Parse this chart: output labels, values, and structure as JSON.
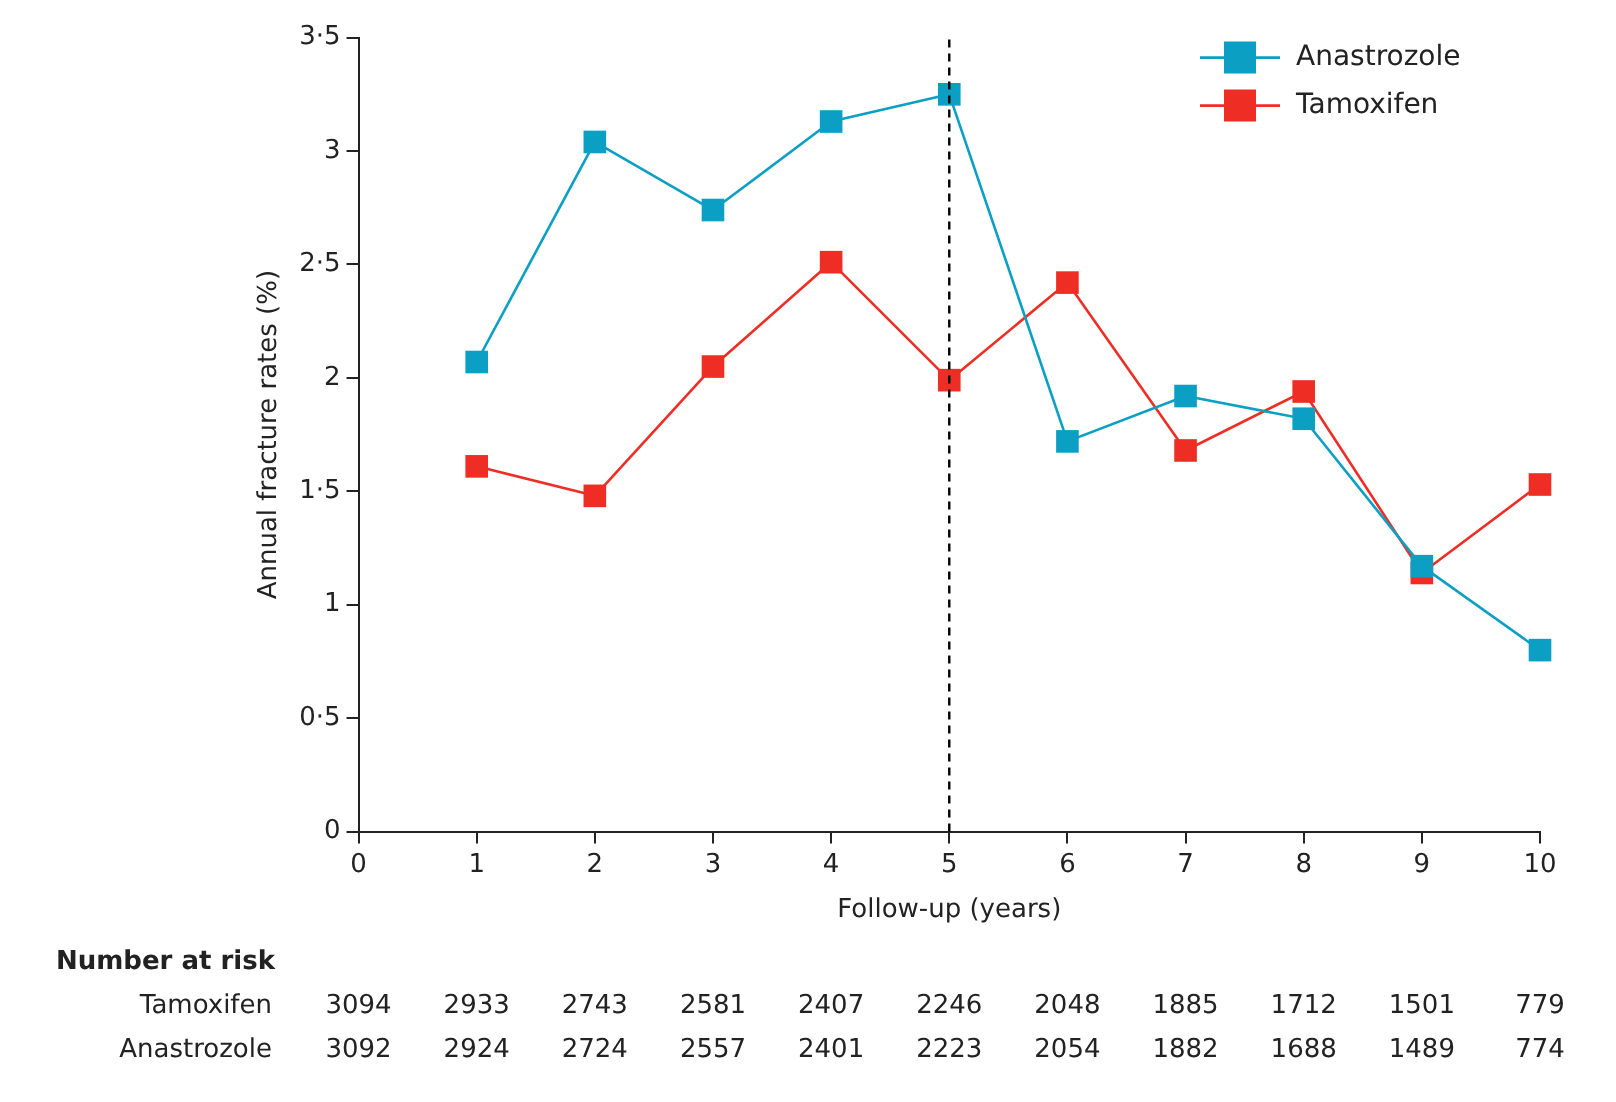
{
  "chart_data": {
    "type": "line",
    "xlabel": "Follow-up (years)",
    "ylabel": "Annual fracture rates (%)",
    "x": [
      1,
      2,
      3,
      4,
      5,
      6,
      7,
      8,
      9,
      10
    ],
    "series": [
      {
        "name": "Anastrozole",
        "color": "#0b9fc4",
        "values": [
          2.07,
          3.04,
          2.74,
          3.13,
          3.25,
          1.72,
          1.92,
          1.82,
          1.17,
          0.8
        ]
      },
      {
        "name": "Tamoxifen",
        "color": "#ee2e24",
        "values": [
          1.61,
          1.48,
          2.05,
          2.51,
          1.99,
          2.42,
          1.68,
          1.94,
          1.14,
          1.53
        ]
      }
    ],
    "xlim": [
      0,
      10
    ],
    "xticks": [
      0,
      1,
      2,
      3,
      4,
      5,
      6,
      7,
      8,
      9,
      10
    ],
    "ylim": [
      0,
      3.5
    ],
    "yticks": [
      0,
      {
        "value": 0.5,
        "label": "0·5"
      },
      1,
      {
        "value": 1.5,
        "label": "1·5"
      },
      2,
      {
        "value": 2.5,
        "label": "2·5"
      },
      3,
      {
        "value": 3.5,
        "label": "3·5"
      }
    ],
    "ref_lines": [
      {
        "axis": "x",
        "value": 5,
        "color": "#000000",
        "line_style": "dashed"
      }
    ],
    "grid": false,
    "legend": "top right",
    "marker": "square",
    "line_style": "solid",
    "annotations": [
      "Number at risk",
      "Tamoxifen",
      "3094",
      "2933",
      "2743",
      "2581",
      "2407",
      "2246",
      "2048",
      "1885",
      "1712",
      "1501",
      "779",
      "Anastrozole",
      "3092",
      "2924",
      "2724",
      "2557",
      "2401",
      "2223",
      "2054",
      "1882",
      "1688",
      "1489",
      "774"
    ]
  }
}
